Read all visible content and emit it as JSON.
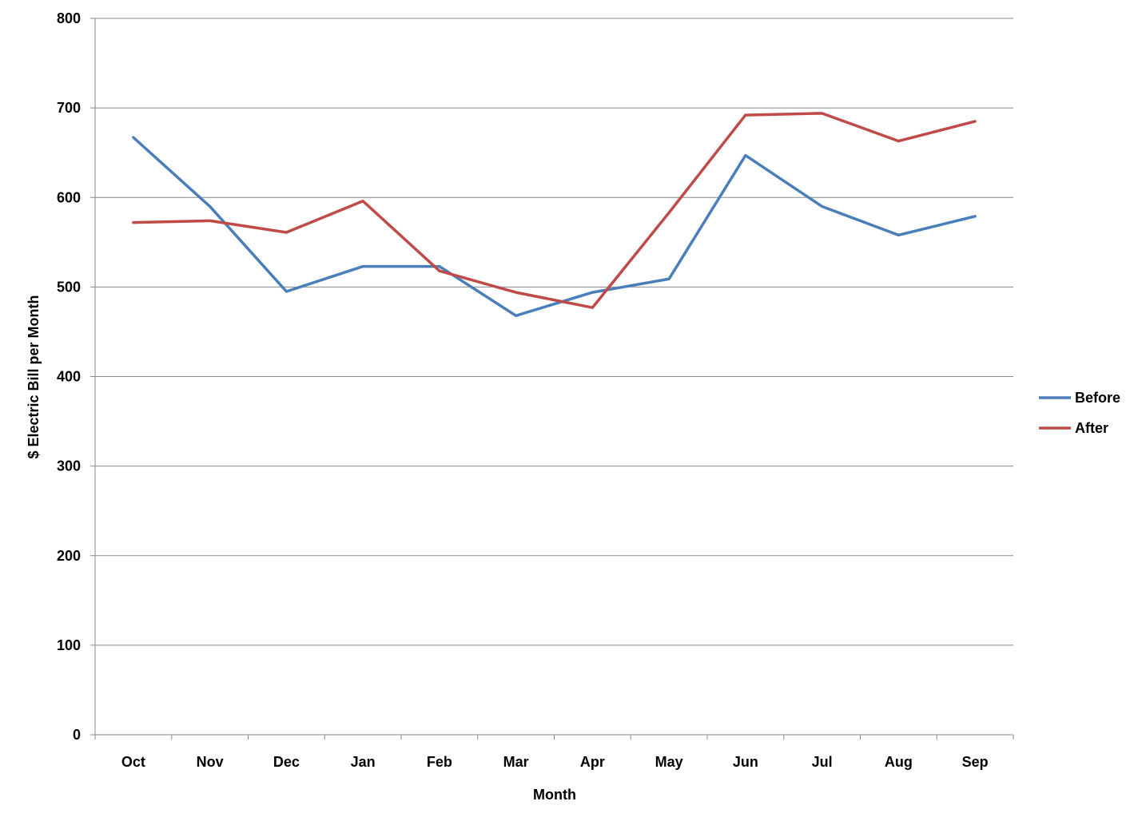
{
  "chart_data": {
    "type": "line",
    "title": "",
    "xlabel": "Month",
    "ylabel": "$ Electric Bill per Month",
    "categories": [
      "Oct",
      "Nov",
      "Dec",
      "Jan",
      "Feb",
      "Mar",
      "Apr",
      "May",
      "Jun",
      "Jul",
      "Aug",
      "Sep"
    ],
    "series": [
      {
        "name": "Before",
        "color": "#4A7EBB",
        "values": [
          667,
          590,
          495,
          523,
          523,
          468,
          494,
          509,
          647,
          590,
          558,
          579
        ]
      },
      {
        "name": "After",
        "color": "#BE4B48",
        "values": [
          572,
          574,
          561,
          596,
          518,
          494,
          477,
          583,
          692,
          694,
          663,
          685
        ]
      }
    ],
    "ylim": [
      0,
      800
    ],
    "yticks": [
      0,
      100,
      200,
      300,
      400,
      500,
      600,
      700,
      800
    ],
    "ytick_labels": [
      "0",
      "100",
      "200",
      "300",
      "400",
      "500",
      "600",
      "700",
      "800"
    ],
    "grid": true,
    "legend_position": "right"
  }
}
